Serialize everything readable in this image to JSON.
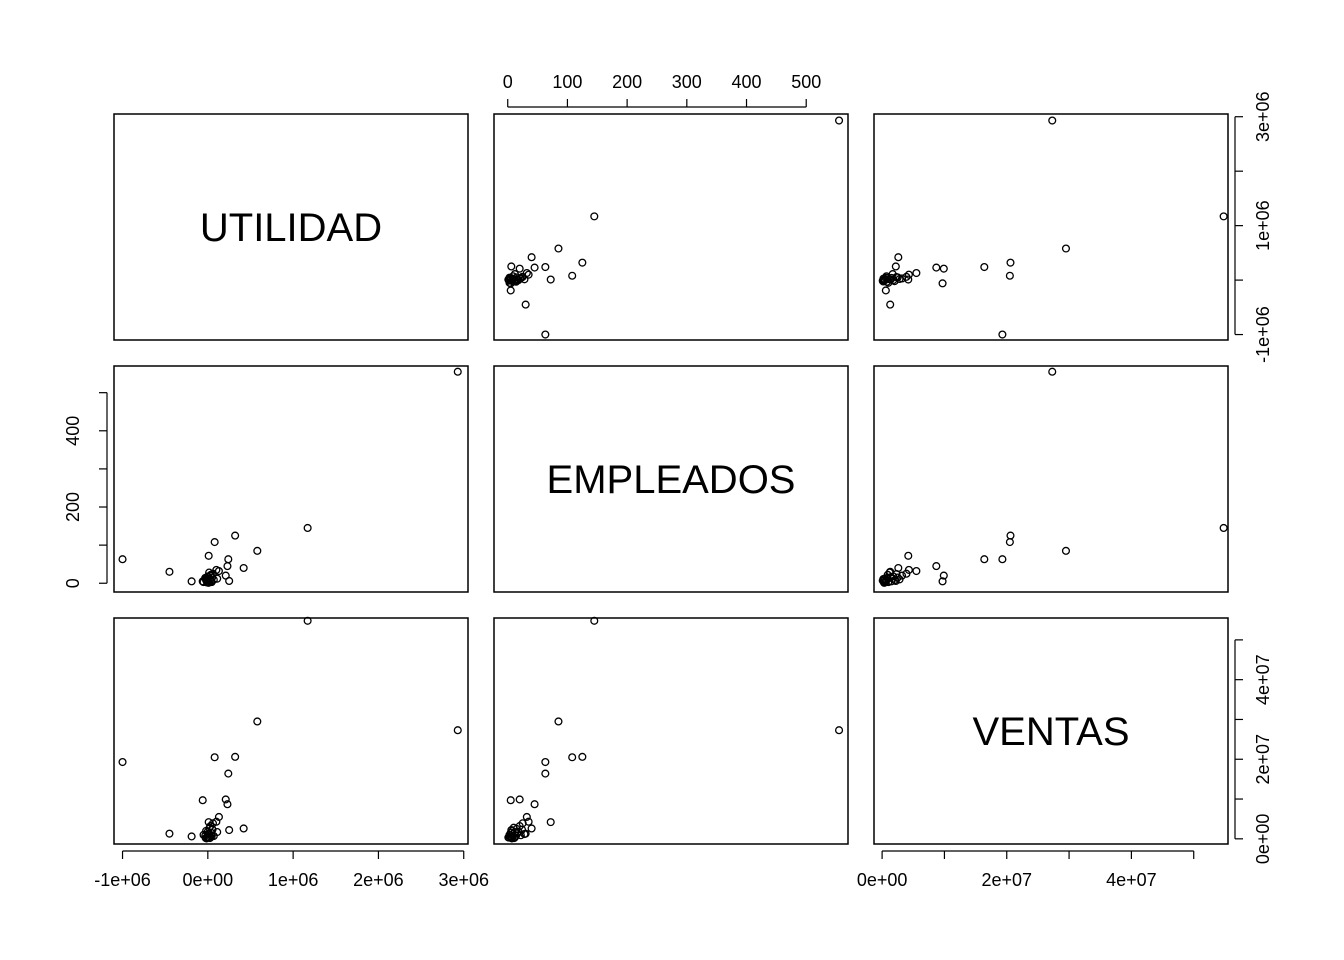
{
  "chart_data": {
    "type": "scatter",
    "layout": "pairs-matrix",
    "grid": false,
    "variables": [
      "UTILIDAD",
      "EMPLEADOS",
      "VENTAS"
    ],
    "axes": {
      "UTILIDAD": {
        "range": [
          -1100000,
          3050000
        ],
        "ticks": [
          -1000000,
          0,
          1000000,
          2000000,
          3000000
        ],
        "tick_labels": [
          "-1e+06",
          "0e+00",
          "1e+06",
          "2e+06",
          "3e+06"
        ]
      },
      "EMPLEADOS": {
        "range": [
          -23,
          570
        ],
        "ticks": [
          0,
          100,
          200,
          300,
          400,
          500
        ],
        "tick_labels": [
          "0",
          "100",
          "200",
          "300",
          "400",
          "500"
        ],
        "left_ticks": [
          0,
          200,
          400
        ],
        "left_tick_labels": [
          "0",
          "200",
          "400"
        ]
      },
      "VENTAS": {
        "range": [
          -1300000,
          55500000
        ],
        "ticks": [
          0,
          10000000,
          20000000,
          30000000,
          40000000,
          50000000
        ],
        "tick_labels": [
          "0e+00",
          "2e+07",
          "4e+07"
        ],
        "labeled_ticks": [
          0,
          20000000,
          40000000
        ]
      }
    },
    "observations": [
      {
        "UTILIDAD": 2930000,
        "EMPLEADOS": 555,
        "VENTAS": 27300000
      },
      {
        "UTILIDAD": 1170000,
        "EMPLEADOS": 145,
        "VENTAS": 54800000
      },
      {
        "UTILIDAD": 580000,
        "EMPLEADOS": 85,
        "VENTAS": 29500000
      },
      {
        "UTILIDAD": 320000,
        "EMPLEADOS": 125,
        "VENTAS": 20600000
      },
      {
        "UTILIDAD": 80000,
        "EMPLEADOS": 108,
        "VENTAS": 20500000
      },
      {
        "UTILIDAD": -1000000,
        "EMPLEADOS": 63,
        "VENTAS": 19300000
      },
      {
        "UTILIDAD": 240000,
        "EMPLEADOS": 63,
        "VENTAS": 16400000
      },
      {
        "UTILIDAD": -450000,
        "EMPLEADOS": 30,
        "VENTAS": 1300000
      },
      {
        "UTILIDAD": 420000,
        "EMPLEADOS": 40,
        "VENTAS": 2600000
      },
      {
        "UTILIDAD": 230000,
        "EMPLEADOS": 45,
        "VENTAS": 8700000
      },
      {
        "UTILIDAD": 210000,
        "EMPLEADOS": 20,
        "VENTAS": 9900000
      },
      {
        "UTILIDAD": -60000,
        "EMPLEADOS": 5,
        "VENTAS": 9700000
      },
      {
        "UTILIDAD": 10000,
        "EMPLEADOS": 72,
        "VENTAS": 4200000
      },
      {
        "UTILIDAD": 130000,
        "EMPLEADOS": 32,
        "VENTAS": 5500000
      },
      {
        "UTILIDAD": 250000,
        "EMPLEADOS": 6,
        "VENTAS": 2200000
      },
      {
        "UTILIDAD": -190000,
        "EMPLEADOS": 5,
        "VENTAS": 600000
      },
      {
        "UTILIDAD": 100000,
        "EMPLEADOS": 35,
        "VENTAS": 4300000
      },
      {
        "UTILIDAD": 60000,
        "EMPLEADOS": 25,
        "VENTAS": 3900000
      },
      {
        "UTILIDAD": 30000,
        "EMPLEADOS": 20,
        "VENTAS": 3200000
      },
      {
        "UTILIDAD": 110000,
        "EMPLEADOS": 12,
        "VENTAS": 1700000
      },
      {
        "UTILIDAD": 20000,
        "EMPLEADOS": 10,
        "VENTAS": 2800000
      },
      {
        "UTILIDAD": -20000,
        "EMPLEADOS": 8,
        "VENTAS": 2000000
      },
      {
        "UTILIDAD": 50000,
        "EMPLEADOS": 15,
        "VENTAS": 2500000
      },
      {
        "UTILIDAD": 40000,
        "EMPLEADOS": 5,
        "VENTAS": 1500000
      },
      {
        "UTILIDAD": -50000,
        "EMPLEADOS": 3,
        "VENTAS": 1000000
      },
      {
        "UTILIDAD": 0,
        "EMPLEADOS": 18,
        "VENTAS": 1800000
      },
      {
        "UTILIDAD": 15000,
        "EMPLEADOS": 28,
        "VENTAS": 1200000
      },
      {
        "UTILIDAD": -30000,
        "EMPLEADOS": 14,
        "VENTAS": 800000
      },
      {
        "UTILIDAD": 70000,
        "EMPLEADOS": 9,
        "VENTAS": 700000
      },
      {
        "UTILIDAD": 5000,
        "EMPLEADOS": 4,
        "VENTAS": 500000
      },
      {
        "UTILIDAD": -10000,
        "EMPLEADOS": 2,
        "VENTAS": 300000
      },
      {
        "UTILIDAD": 25000,
        "EMPLEADOS": 6,
        "VENTAS": 200000
      },
      {
        "UTILIDAD": -5000,
        "EMPLEADOS": 12,
        "VENTAS": 400000
      },
      {
        "UTILIDAD": 35000,
        "EMPLEADOS": 22,
        "VENTAS": 900000
      },
      {
        "UTILIDAD": -15000,
        "EMPLEADOS": 7,
        "VENTAS": 100000
      },
      {
        "UTILIDAD": 45000,
        "EMPLEADOS": 3,
        "VENTAS": 600000
      },
      {
        "UTILIDAD": 12000,
        "EMPLEADOS": 16,
        "VENTAS": 1400000
      },
      {
        "UTILIDAD": -25000,
        "EMPLEADOS": 11,
        "VENTAS": 200000
      },
      {
        "UTILIDAD": 8000,
        "EMPLEADOS": 1,
        "VENTAS": 350000
      },
      {
        "UTILIDAD": 55000,
        "EMPLEADOS": 24,
        "VENTAS": 2300000
      }
    ]
  }
}
